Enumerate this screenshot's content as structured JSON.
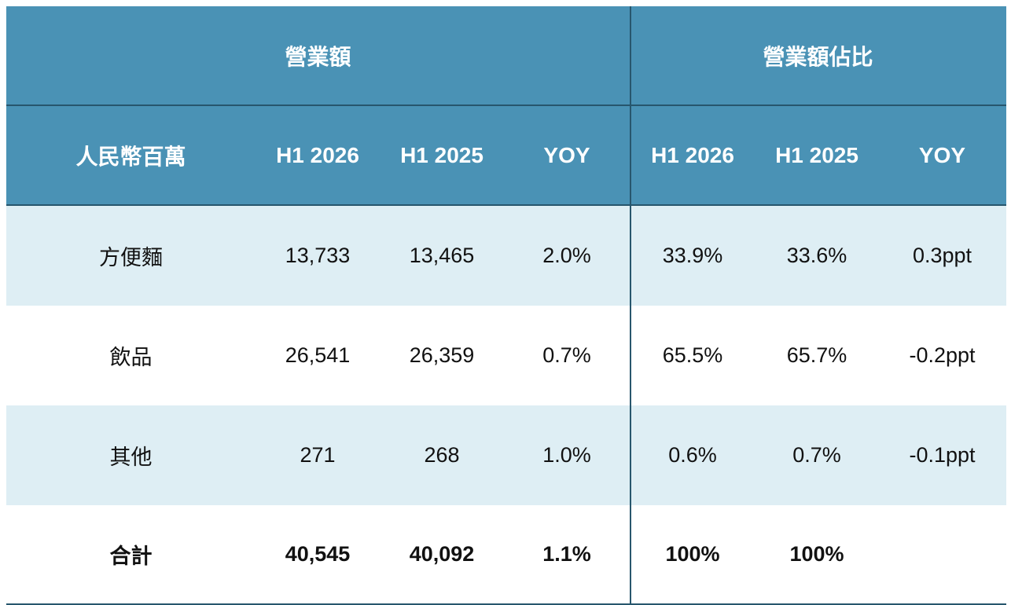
{
  "groups": {
    "revenue": "營業額",
    "share": "營業額佔比"
  },
  "columns": {
    "unit": "人民幣百萬",
    "rev_h1_2026": "H1 2026",
    "rev_h1_2025": "H1 2025",
    "rev_yoy": "YOY",
    "share_h1_2026": "H1 2026",
    "share_h1_2025": "H1 2025",
    "share_yoy": "YOY"
  },
  "rows": [
    {
      "name": "方便麵",
      "rev_2026": "13,733",
      "rev_2025": "13,465",
      "rev_yoy": "2.0%",
      "share_2026": "33.9%",
      "share_2025": "33.6%",
      "share_yoy": "0.3ppt"
    },
    {
      "name": "飲品",
      "rev_2026": "26,541",
      "rev_2025": "26,359",
      "rev_yoy": "0.7%",
      "share_2026": "65.5%",
      "share_2025": "65.7%",
      "share_yoy": "-0.2ppt"
    },
    {
      "name": "其他",
      "rev_2026": "271",
      "rev_2025": "268",
      "rev_yoy": "1.0%",
      "share_2026": "0.6%",
      "share_2025": "0.7%",
      "share_yoy": "-0.1ppt"
    }
  ],
  "total": {
    "name": "合計",
    "rev_2026": "40,545",
    "rev_2025": "40,092",
    "rev_yoy": "1.1%",
    "share_2026": "100%",
    "share_2025": "100%",
    "share_yoy": ""
  },
  "colors": {
    "header_bg": "#4a92b5",
    "shade_bg": "#deeef4",
    "divider": "#27566d"
  }
}
